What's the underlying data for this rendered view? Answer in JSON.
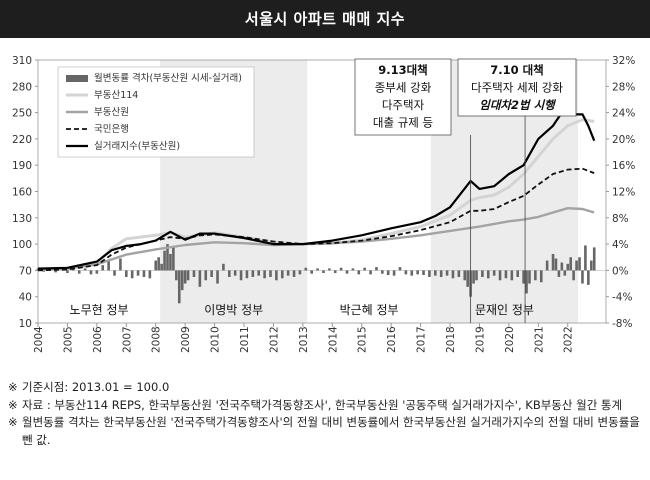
{
  "header": {
    "title": "서울시 아파트 매매 지수"
  },
  "chart_data": {
    "type": "line",
    "x_range": [
      2004,
      2023.3
    ],
    "y_left": {
      "min": 10,
      "max": 310,
      "ticks": [
        10,
        40,
        70,
        100,
        130,
        160,
        190,
        220,
        250,
        280,
        310
      ]
    },
    "y_right": {
      "min": -8,
      "max": 32,
      "ticks": [
        "-8%",
        "-4%",
        "0%",
        "4%",
        "8%",
        "12%",
        "16%",
        "20%",
        "24%",
        "28%",
        "32%"
      ],
      "tick_values": [
        -8,
        -4,
        0,
        4,
        8,
        12,
        16,
        20,
        24,
        28,
        32
      ]
    },
    "x_ticks": [
      "2004",
      "2005",
      "2006",
      "2007",
      "2008",
      "2009",
      "2010",
      "2011",
      "2012",
      "2013",
      "2014",
      "2015",
      "2016",
      "2017",
      "2018",
      "2019",
      "2020",
      "2021",
      "2022"
    ],
    "legend": {
      "placement": "top-left",
      "entries": [
        "월변동률 격차(부동산원 시세-실거래)",
        "부동산114",
        "부동산원",
        "국민은행",
        "실거래지수(부동산원)"
      ]
    },
    "colors": {
      "bars": "#666666",
      "r114": "#d4d4d4",
      "reb": "#a3a3a3",
      "kb": "#111111",
      "real": "#000000",
      "shade": "#ececec"
    },
    "series": [
      {
        "name": "부동산114",
        "points": [
          [
            2004.0,
            71
          ],
          [
            2005.0,
            72
          ],
          [
            2006.0,
            78
          ],
          [
            2006.5,
            95
          ],
          [
            2007.0,
            106
          ],
          [
            2008.0,
            110
          ],
          [
            2008.5,
            113
          ],
          [
            2009.0,
            108
          ],
          [
            2009.5,
            110
          ],
          [
            2010.0,
            113
          ],
          [
            2011.0,
            108
          ],
          [
            2012.0,
            102
          ],
          [
            2013.0,
            100
          ],
          [
            2014.0,
            101
          ],
          [
            2015.0,
            105
          ],
          [
            2016.0,
            112
          ],
          [
            2017.0,
            120
          ],
          [
            2018.0,
            133
          ],
          [
            2018.7,
            150
          ],
          [
            2019.0,
            153
          ],
          [
            2019.5,
            156
          ],
          [
            2020.0,
            165
          ],
          [
            2020.5,
            180
          ],
          [
            2021.0,
            200
          ],
          [
            2021.5,
            220
          ],
          [
            2022.0,
            235
          ],
          [
            2022.5,
            242
          ],
          [
            2022.9,
            240
          ]
        ]
      },
      {
        "name": "부동산원",
        "points": [
          [
            2004.0,
            71
          ],
          [
            2005.0,
            72
          ],
          [
            2006.0,
            77
          ],
          [
            2007.0,
            88
          ],
          [
            2008.0,
            94
          ],
          [
            2009.0,
            99
          ],
          [
            2010.0,
            102
          ],
          [
            2011.0,
            101
          ],
          [
            2012.0,
            99
          ],
          [
            2013.0,
            100
          ],
          [
            2014.0,
            101
          ],
          [
            2015.0,
            103
          ],
          [
            2016.0,
            106
          ],
          [
            2017.0,
            110
          ],
          [
            2018.0,
            115
          ],
          [
            2019.0,
            120
          ],
          [
            2020.0,
            126
          ],
          [
            2020.5,
            128
          ],
          [
            2021.0,
            131
          ],
          [
            2021.5,
            136
          ],
          [
            2022.0,
            141
          ],
          [
            2022.5,
            140
          ],
          [
            2022.9,
            136
          ]
        ]
      },
      {
        "name": "국민은행",
        "points": [
          [
            2004.0,
            70
          ],
          [
            2005.0,
            71
          ],
          [
            2006.0,
            76
          ],
          [
            2006.5,
            88
          ],
          [
            2007.0,
            96
          ],
          [
            2008.0,
            104
          ],
          [
            2008.5,
            108
          ],
          [
            2009.0,
            106
          ],
          [
            2009.5,
            110
          ],
          [
            2010.0,
            111
          ],
          [
            2011.0,
            108
          ],
          [
            2012.0,
            103
          ],
          [
            2013.0,
            100
          ],
          [
            2014.0,
            101
          ],
          [
            2015.0,
            104
          ],
          [
            2016.0,
            109
          ],
          [
            2017.0,
            116
          ],
          [
            2018.0,
            125
          ],
          [
            2018.7,
            138
          ],
          [
            2019.0,
            138
          ],
          [
            2019.5,
            140
          ],
          [
            2020.0,
            148
          ],
          [
            2020.5,
            155
          ],
          [
            2021.0,
            168
          ],
          [
            2021.5,
            180
          ],
          [
            2022.0,
            185
          ],
          [
            2022.5,
            186
          ],
          [
            2022.9,
            181
          ]
        ]
      },
      {
        "name": "실거래지수(부동산원)",
        "points": [
          [
            2004.0,
            72
          ],
          [
            2005.0,
            73
          ],
          [
            2006.0,
            80
          ],
          [
            2006.5,
            93
          ],
          [
            2007.0,
            98
          ],
          [
            2007.5,
            100
          ],
          [
            2008.0,
            104
          ],
          [
            2008.5,
            114
          ],
          [
            2009.0,
            105
          ],
          [
            2009.5,
            112
          ],
          [
            2010.0,
            112
          ],
          [
            2011.0,
            107
          ],
          [
            2012.0,
            100
          ],
          [
            2013.0,
            100
          ],
          [
            2014.0,
            104
          ],
          [
            2015.0,
            110
          ],
          [
            2016.0,
            118
          ],
          [
            2017.0,
            125
          ],
          [
            2017.5,
            132
          ],
          [
            2018.0,
            142
          ],
          [
            2018.7,
            172
          ],
          [
            2019.0,
            163
          ],
          [
            2019.5,
            166
          ],
          [
            2020.0,
            180
          ],
          [
            2020.5,
            190
          ],
          [
            2021.0,
            220
          ],
          [
            2021.5,
            235
          ],
          [
            2021.9,
            255
          ],
          [
            2022.2,
            248
          ],
          [
            2022.5,
            248
          ],
          [
            2022.7,
            235
          ],
          [
            2022.9,
            218
          ]
        ]
      }
    ],
    "bars_gap": [
      [
        2004.0,
        0.3
      ],
      [
        2004.2,
        -0.2
      ],
      [
        2004.4,
        0.4
      ],
      [
        2004.6,
        -0.3
      ],
      [
        2004.8,
        0.2
      ],
      [
        2005.0,
        -0.4
      ],
      [
        2005.2,
        0.5
      ],
      [
        2005.4,
        -0.5
      ],
      [
        2005.6,
        0.3
      ],
      [
        2005.8,
        -0.6
      ],
      [
        2006.0,
        -0.5
      ],
      [
        2006.2,
        0.8
      ],
      [
        2006.4,
        1.5
      ],
      [
        2006.6,
        -0.8
      ],
      [
        2006.8,
        1.8
      ],
      [
        2007.0,
        -1.0
      ],
      [
        2007.2,
        -1.2
      ],
      [
        2007.4,
        -0.8
      ],
      [
        2007.6,
        -1.0
      ],
      [
        2007.8,
        -1.2
      ],
      [
        2008.0,
        1.5
      ],
      [
        2008.1,
        2.0
      ],
      [
        2008.2,
        1.0
      ],
      [
        2008.3,
        3.0
      ],
      [
        2008.4,
        4.0
      ],
      [
        2008.5,
        2.5
      ],
      [
        2008.6,
        3.5
      ],
      [
        2008.7,
        -1.5
      ],
      [
        2008.8,
        -5.0
      ],
      [
        2008.9,
        -3.0
      ],
      [
        2009.0,
        -2.0
      ],
      [
        2009.1,
        -1.5
      ],
      [
        2009.3,
        -1.0
      ],
      [
        2009.5,
        -2.5
      ],
      [
        2009.7,
        -1.5
      ],
      [
        2009.9,
        -1.0
      ],
      [
        2010.1,
        -2.0
      ],
      [
        2010.3,
        1.0
      ],
      [
        2010.5,
        -1.0
      ],
      [
        2010.7,
        -0.8
      ],
      [
        2010.9,
        -1.5
      ],
      [
        2011.1,
        -1.2
      ],
      [
        2011.3,
        -1.0
      ],
      [
        2011.5,
        -0.8
      ],
      [
        2011.7,
        -1.2
      ],
      [
        2011.9,
        -1.0
      ],
      [
        2012.1,
        -1.5
      ],
      [
        2012.3,
        -1.2
      ],
      [
        2012.5,
        -0.8
      ],
      [
        2012.7,
        -1.0
      ],
      [
        2012.9,
        -0.6
      ],
      [
        2013.1,
        0.4
      ],
      [
        2013.3,
        -0.5
      ],
      [
        2013.5,
        0.3
      ],
      [
        2013.7,
        -0.4
      ],
      [
        2013.9,
        0.3
      ],
      [
        2014.1,
        -0.4
      ],
      [
        2014.3,
        0.4
      ],
      [
        2014.5,
        -0.5
      ],
      [
        2014.7,
        0.3
      ],
      [
        2014.9,
        -0.6
      ],
      [
        2015.1,
        0.4
      ],
      [
        2015.3,
        -0.6
      ],
      [
        2015.5,
        0.5
      ],
      [
        2015.7,
        -0.5
      ],
      [
        2015.9,
        -0.7
      ],
      [
        2016.1,
        -0.8
      ],
      [
        2016.3,
        0.5
      ],
      [
        2016.5,
        -0.6
      ],
      [
        2016.7,
        -0.8
      ],
      [
        2016.9,
        -0.6
      ],
      [
        2017.1,
        -0.7
      ],
      [
        2017.3,
        -1.0
      ],
      [
        2017.5,
        -0.8
      ],
      [
        2017.7,
        -1.0
      ],
      [
        2017.9,
        -0.8
      ],
      [
        2018.1,
        -1.2
      ],
      [
        2018.3,
        -1.0
      ],
      [
        2018.5,
        -1.5
      ],
      [
        2018.6,
        -2.5
      ],
      [
        2018.7,
        -4.0
      ],
      [
        2018.8,
        -2.0
      ],
      [
        2018.9,
        -1.5
      ],
      [
        2019.1,
        -1.0
      ],
      [
        2019.3,
        -1.2
      ],
      [
        2019.5,
        -0.8
      ],
      [
        2019.7,
        -1.5
      ],
      [
        2019.9,
        -1.2
      ],
      [
        2020.1,
        -1.5
      ],
      [
        2020.3,
        -1.0
      ],
      [
        2020.5,
        -2.0
      ],
      [
        2020.6,
        -3.5
      ],
      [
        2020.7,
        -2.0
      ],
      [
        2020.9,
        -1.5
      ],
      [
        2021.1,
        -1.8
      ],
      [
        2021.3,
        1.5
      ],
      [
        2021.5,
        2.5
      ],
      [
        2021.6,
        1.8
      ],
      [
        2021.7,
        -1.0
      ],
      [
        2021.8,
        1.2
      ],
      [
        2021.9,
        -0.8
      ],
      [
        2022.0,
        1.0
      ],
      [
        2022.1,
        2.0
      ],
      [
        2022.2,
        -1.5
      ],
      [
        2022.3,
        1.5
      ],
      [
        2022.4,
        2.0
      ],
      [
        2022.5,
        -2.0
      ],
      [
        2022.6,
        3.8
      ],
      [
        2022.7,
        -2.2
      ],
      [
        2022.8,
        1.5
      ],
      [
        2022.9,
        3.5
      ]
    ],
    "government_periods": [
      {
        "label": "노무현 정부",
        "from": 2004.0,
        "to": 2008.15,
        "shaded": false
      },
      {
        "label": "이명박 정부",
        "from": 2008.15,
        "to": 2013.15,
        "shaded": true
      },
      {
        "label": "박근혜 정부",
        "from": 2013.15,
        "to": 2017.35,
        "shaded": false
      },
      {
        "label": "문재인 정부",
        "from": 2017.35,
        "to": 2022.35,
        "shaded": true
      }
    ],
    "annotations": [
      {
        "x": 2018.7,
        "lines": [
          "9.13대책",
          "종부세 강화",
          "다주택자",
          "대출 규제 등"
        ]
      },
      {
        "x": 2020.55,
        "lines": [
          "7.10 대책",
          "다주택자 세제 강화",
          "임대차2법 시행"
        ]
      }
    ]
  },
  "notes": [
    {
      "mark": "※",
      "text": "기준시점: 2013.01 = 100.0"
    },
    {
      "mark": "※",
      "text": "자료 : 부동산114 REPS, 한국부동산원 '전국주택가격동향조사', 한국부동산원 '공동주택 실거래가지수', KB부동산 월간 통계"
    },
    {
      "mark": "※",
      "text": "월변동률 격차는 한국부동산원 '전국주택가격동향조사'의 전월 대비 변동률에서 한국부동산원 실거래가지수의 전월 대비 변동률을 뺀 값."
    }
  ]
}
